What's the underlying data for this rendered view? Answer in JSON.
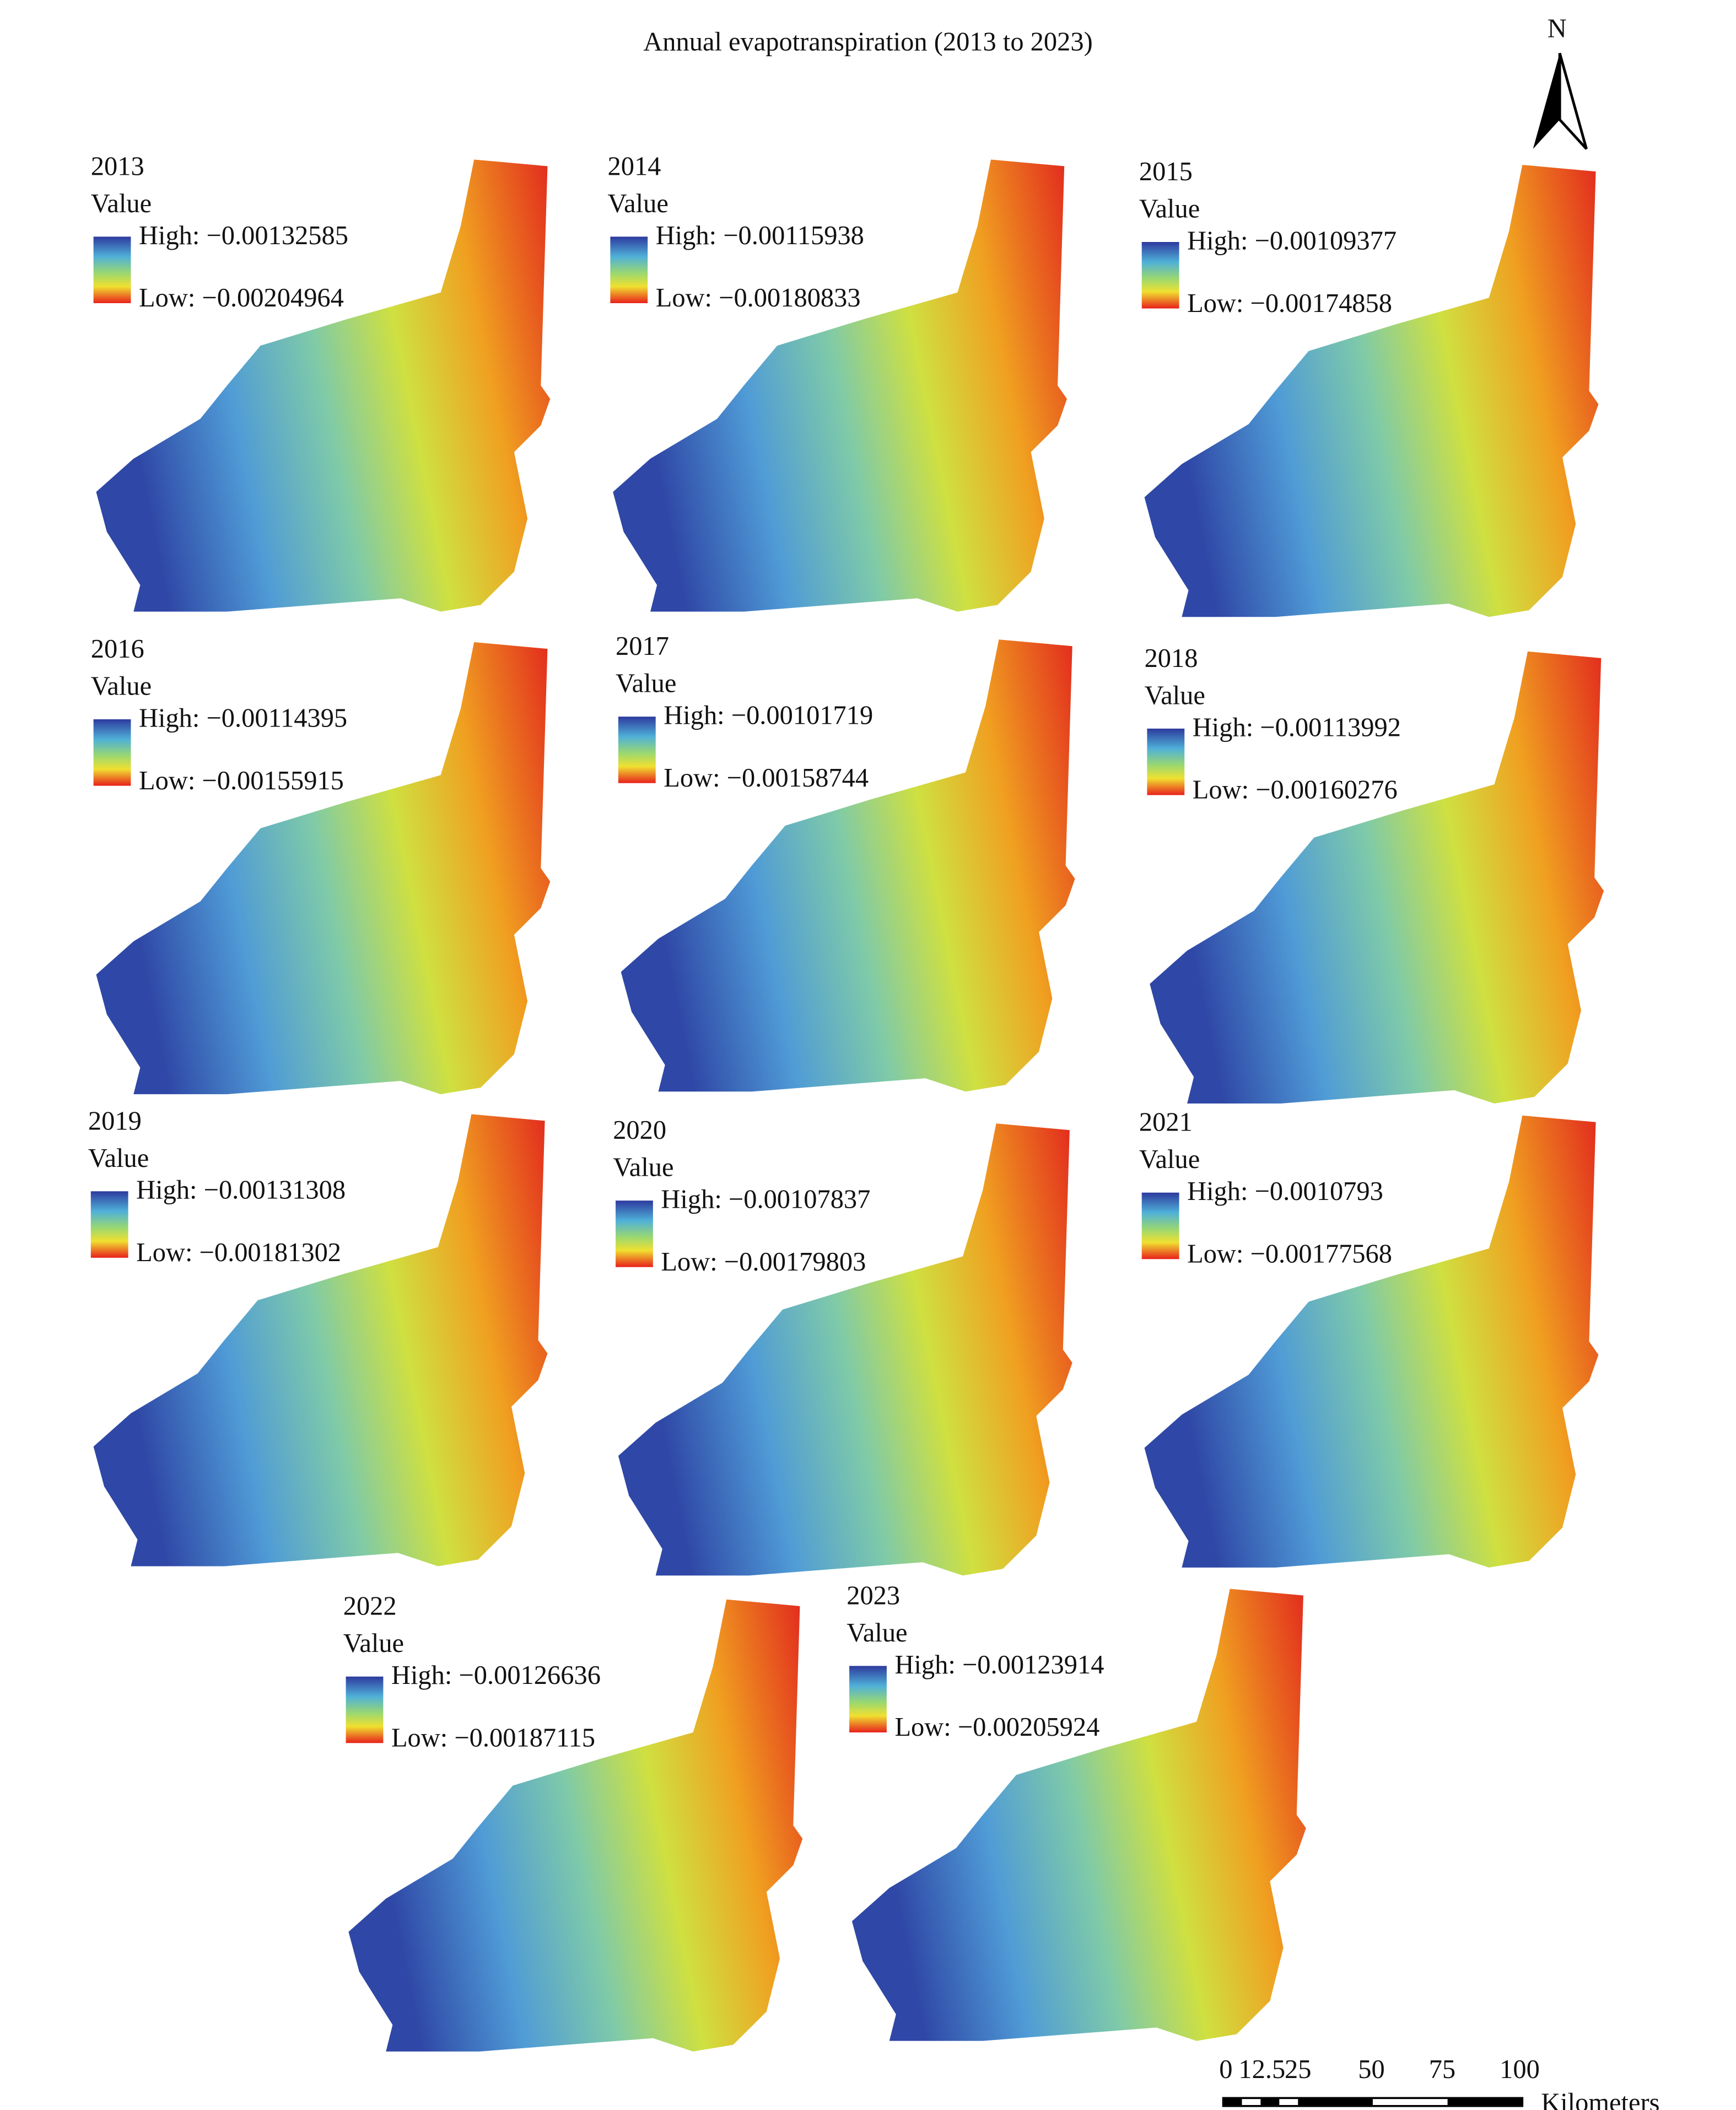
{
  "title": "Annual evapotranspiration (2013 to 2023)",
  "panels": [
    {
      "year": "2013",
      "legend_title": "Value",
      "high": "High: −0.00132585",
      "low": "Low: −0.00204964"
    },
    {
      "year": "2014",
      "legend_title": "Value",
      "high": "High: −0.00115938",
      "low": "Low: −0.00180833"
    },
    {
      "year": "2015",
      "legend_title": "Value",
      "high": "High: −0.00109377",
      "low": "Low: −0.00174858"
    },
    {
      "year": "2016",
      "legend_title": "Value",
      "high": "High: −0.00114395",
      "low": "Low: −0.00155915"
    },
    {
      "year": "2017",
      "legend_title": "Value",
      "high": "High: −0.00101719",
      "low": "Low: −0.00158744"
    },
    {
      "year": "2018",
      "legend_title": "Value",
      "high": "High: −0.00113992",
      "low": "Low: −0.00160276"
    },
    {
      "year": "2019",
      "legend_title": "Value",
      "high": "High: −0.00131308",
      "low": "Low: −0.00181302"
    },
    {
      "year": "2020",
      "legend_title": "Value",
      "high": "High: −0.00107837",
      "low": "Low: −0.00179803"
    },
    {
      "year": "2021",
      "legend_title": "Value",
      "high": "High: −0.0010793",
      "low": "Low: −0.00177568"
    },
    {
      "year": "2022",
      "legend_title": "Value",
      "high": "High: −0.00126636",
      "low": "Low: −0.00187115"
    },
    {
      "year": "2023",
      "legend_title": "Value",
      "high": "High: −0.00123914",
      "low": "Low: −0.00205924"
    }
  ],
  "north_arrow": "N",
  "scale_bar": {
    "ticks": [
      "0",
      "12.5",
      "25",
      "50",
      "75",
      "100"
    ],
    "unit": "Kilometers"
  }
}
